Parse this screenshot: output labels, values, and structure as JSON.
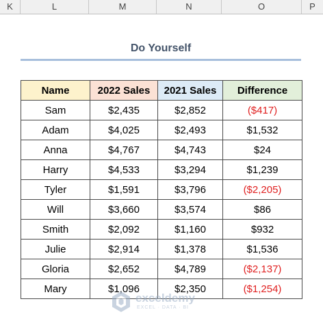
{
  "columns": [
    "K",
    "L",
    "M",
    "N",
    "O",
    "P"
  ],
  "title": "Do Yourself",
  "table": {
    "headers": [
      "Name",
      "2022 Sales",
      "2021 Sales",
      "Difference"
    ],
    "header_colors": [
      "#fdf2cc",
      "#fbe1d5",
      "#ddebf7",
      "#e2efda"
    ],
    "negative_color": "#e02020",
    "rows": [
      {
        "name": "Sam",
        "s2022": "$2,435",
        "s2021": "$2,852",
        "diff": "($417)",
        "negative": true
      },
      {
        "name": "Adam",
        "s2022": "$4,025",
        "s2021": "$2,493",
        "diff": "$1,532",
        "negative": false
      },
      {
        "name": "Anna",
        "s2022": "$4,767",
        "s2021": "$4,743",
        "diff": "$24",
        "negative": false
      },
      {
        "name": "Harry",
        "s2022": "$4,533",
        "s2021": "$3,294",
        "diff": "$1,239",
        "negative": false
      },
      {
        "name": "Tyler",
        "s2022": "$1,591",
        "s2021": "$3,796",
        "diff": "($2,205)",
        "negative": true
      },
      {
        "name": "Will",
        "s2022": "$3,660",
        "s2021": "$3,574",
        "diff": "$86",
        "negative": false
      },
      {
        "name": "Smith",
        "s2022": "$2,092",
        "s2021": "$1,160",
        "diff": "$932",
        "negative": false
      },
      {
        "name": "Julie",
        "s2022": "$2,914",
        "s2021": "$1,378",
        "diff": "$1,536",
        "negative": false
      },
      {
        "name": "Gloria",
        "s2022": "$2,652",
        "s2021": "$4,789",
        "diff": "($2,137)",
        "negative": true
      },
      {
        "name": "Mary",
        "s2022": "$1,096",
        "s2021": "$2,350",
        "diff": "($1,254)",
        "negative": true
      }
    ]
  },
  "watermark": {
    "brand": "exceldemy",
    "tagline": "EXCEL · DATA · BI",
    "icon": "exceldemy-logo-icon"
  }
}
